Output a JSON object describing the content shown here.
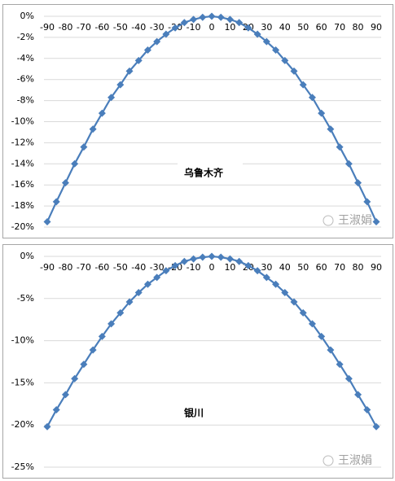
{
  "chart_data": [
    {
      "type": "line",
      "annotation": "乌鲁木齐",
      "watermark": "王淑娟",
      "color": "#4a7ebb",
      "x": [
        -90,
        -85,
        -80,
        -75,
        -70,
        -65,
        -60,
        -55,
        -50,
        -45,
        -40,
        -35,
        -30,
        -25,
        -20,
        -15,
        -10,
        -5,
        0,
        5,
        10,
        15,
        20,
        25,
        30,
        35,
        40,
        45,
        50,
        55,
        60,
        65,
        70,
        75,
        80,
        85,
        90
      ],
      "values": [
        -19.5,
        -17.6,
        -15.8,
        -14.0,
        -12.4,
        -10.7,
        -9.2,
        -7.7,
        -6.5,
        -5.2,
        -4.2,
        -3.2,
        -2.4,
        -1.7,
        -1.1,
        -0.6,
        -0.3,
        -0.1,
        0,
        -0.1,
        -0.3,
        -0.6,
        -1.1,
        -1.7,
        -2.4,
        -3.2,
        -4.2,
        -5.2,
        -6.5,
        -7.7,
        -9.2,
        -10.7,
        -12.4,
        -14.0,
        -15.8,
        -17.6,
        -19.5
      ],
      "xlim": [
        -90,
        90
      ],
      "xticks": [
        -90,
        -80,
        -70,
        -60,
        -50,
        -40,
        -30,
        -20,
        -10,
        0,
        10,
        20,
        30,
        40,
        50,
        60,
        70,
        80,
        90
      ],
      "ylim": [
        -20,
        0
      ],
      "yticks": [
        {
          "value": 0,
          "label": "0%"
        },
        {
          "value": -2,
          "label": "-2%"
        },
        {
          "value": -4,
          "label": "-4%"
        },
        {
          "value": -6,
          "label": "-6%"
        },
        {
          "value": -8,
          "label": "-8%"
        },
        {
          "value": -10,
          "label": "-10%"
        },
        {
          "value": -12,
          "label": "-12%"
        },
        {
          "value": -14,
          "label": "-14%"
        },
        {
          "value": -16,
          "label": "-16%"
        },
        {
          "value": -18,
          "label": "-18%"
        },
        {
          "value": -20,
          "label": "-20%"
        }
      ],
      "grid": true
    },
    {
      "type": "line",
      "annotation": "银川",
      "watermark": "王淑娟",
      "color": "#4a7ebb",
      "x": [
        -90,
        -85,
        -80,
        -75,
        -70,
        -65,
        -60,
        -55,
        -50,
        -45,
        -40,
        -35,
        -30,
        -25,
        -20,
        -15,
        -10,
        -5,
        0,
        5,
        10,
        15,
        20,
        25,
        30,
        35,
        40,
        45,
        50,
        55,
        60,
        65,
        70,
        75,
        80,
        85,
        90
      ],
      "values": [
        -20.2,
        -18.2,
        -16.4,
        -14.5,
        -12.8,
        -11.1,
        -9.5,
        -8.0,
        -6.7,
        -5.4,
        -4.3,
        -3.3,
        -2.5,
        -1.7,
        -1.1,
        -0.6,
        -0.3,
        -0.1,
        0,
        -0.1,
        -0.3,
        -0.6,
        -1.1,
        -1.7,
        -2.5,
        -3.3,
        -4.3,
        -5.4,
        -6.7,
        -8.0,
        -9.5,
        -11.1,
        -12.8,
        -14.5,
        -16.4,
        -18.2,
        -20.2
      ],
      "xlim": [
        -90,
        90
      ],
      "xticks": [
        -90,
        -80,
        -70,
        -60,
        -50,
        -40,
        -30,
        -20,
        -10,
        0,
        10,
        20,
        30,
        40,
        50,
        60,
        70,
        80,
        90
      ],
      "ylim": [
        -25,
        0
      ],
      "yticks": [
        {
          "value": 0,
          "label": "0%"
        },
        {
          "value": -5,
          "label": "-5%"
        },
        {
          "value": -10,
          "label": "-10%"
        },
        {
          "value": -15,
          "label": "-15%"
        },
        {
          "value": -20,
          "label": "-20%"
        },
        {
          "value": -25,
          "label": "-25%"
        }
      ],
      "grid": true
    }
  ]
}
